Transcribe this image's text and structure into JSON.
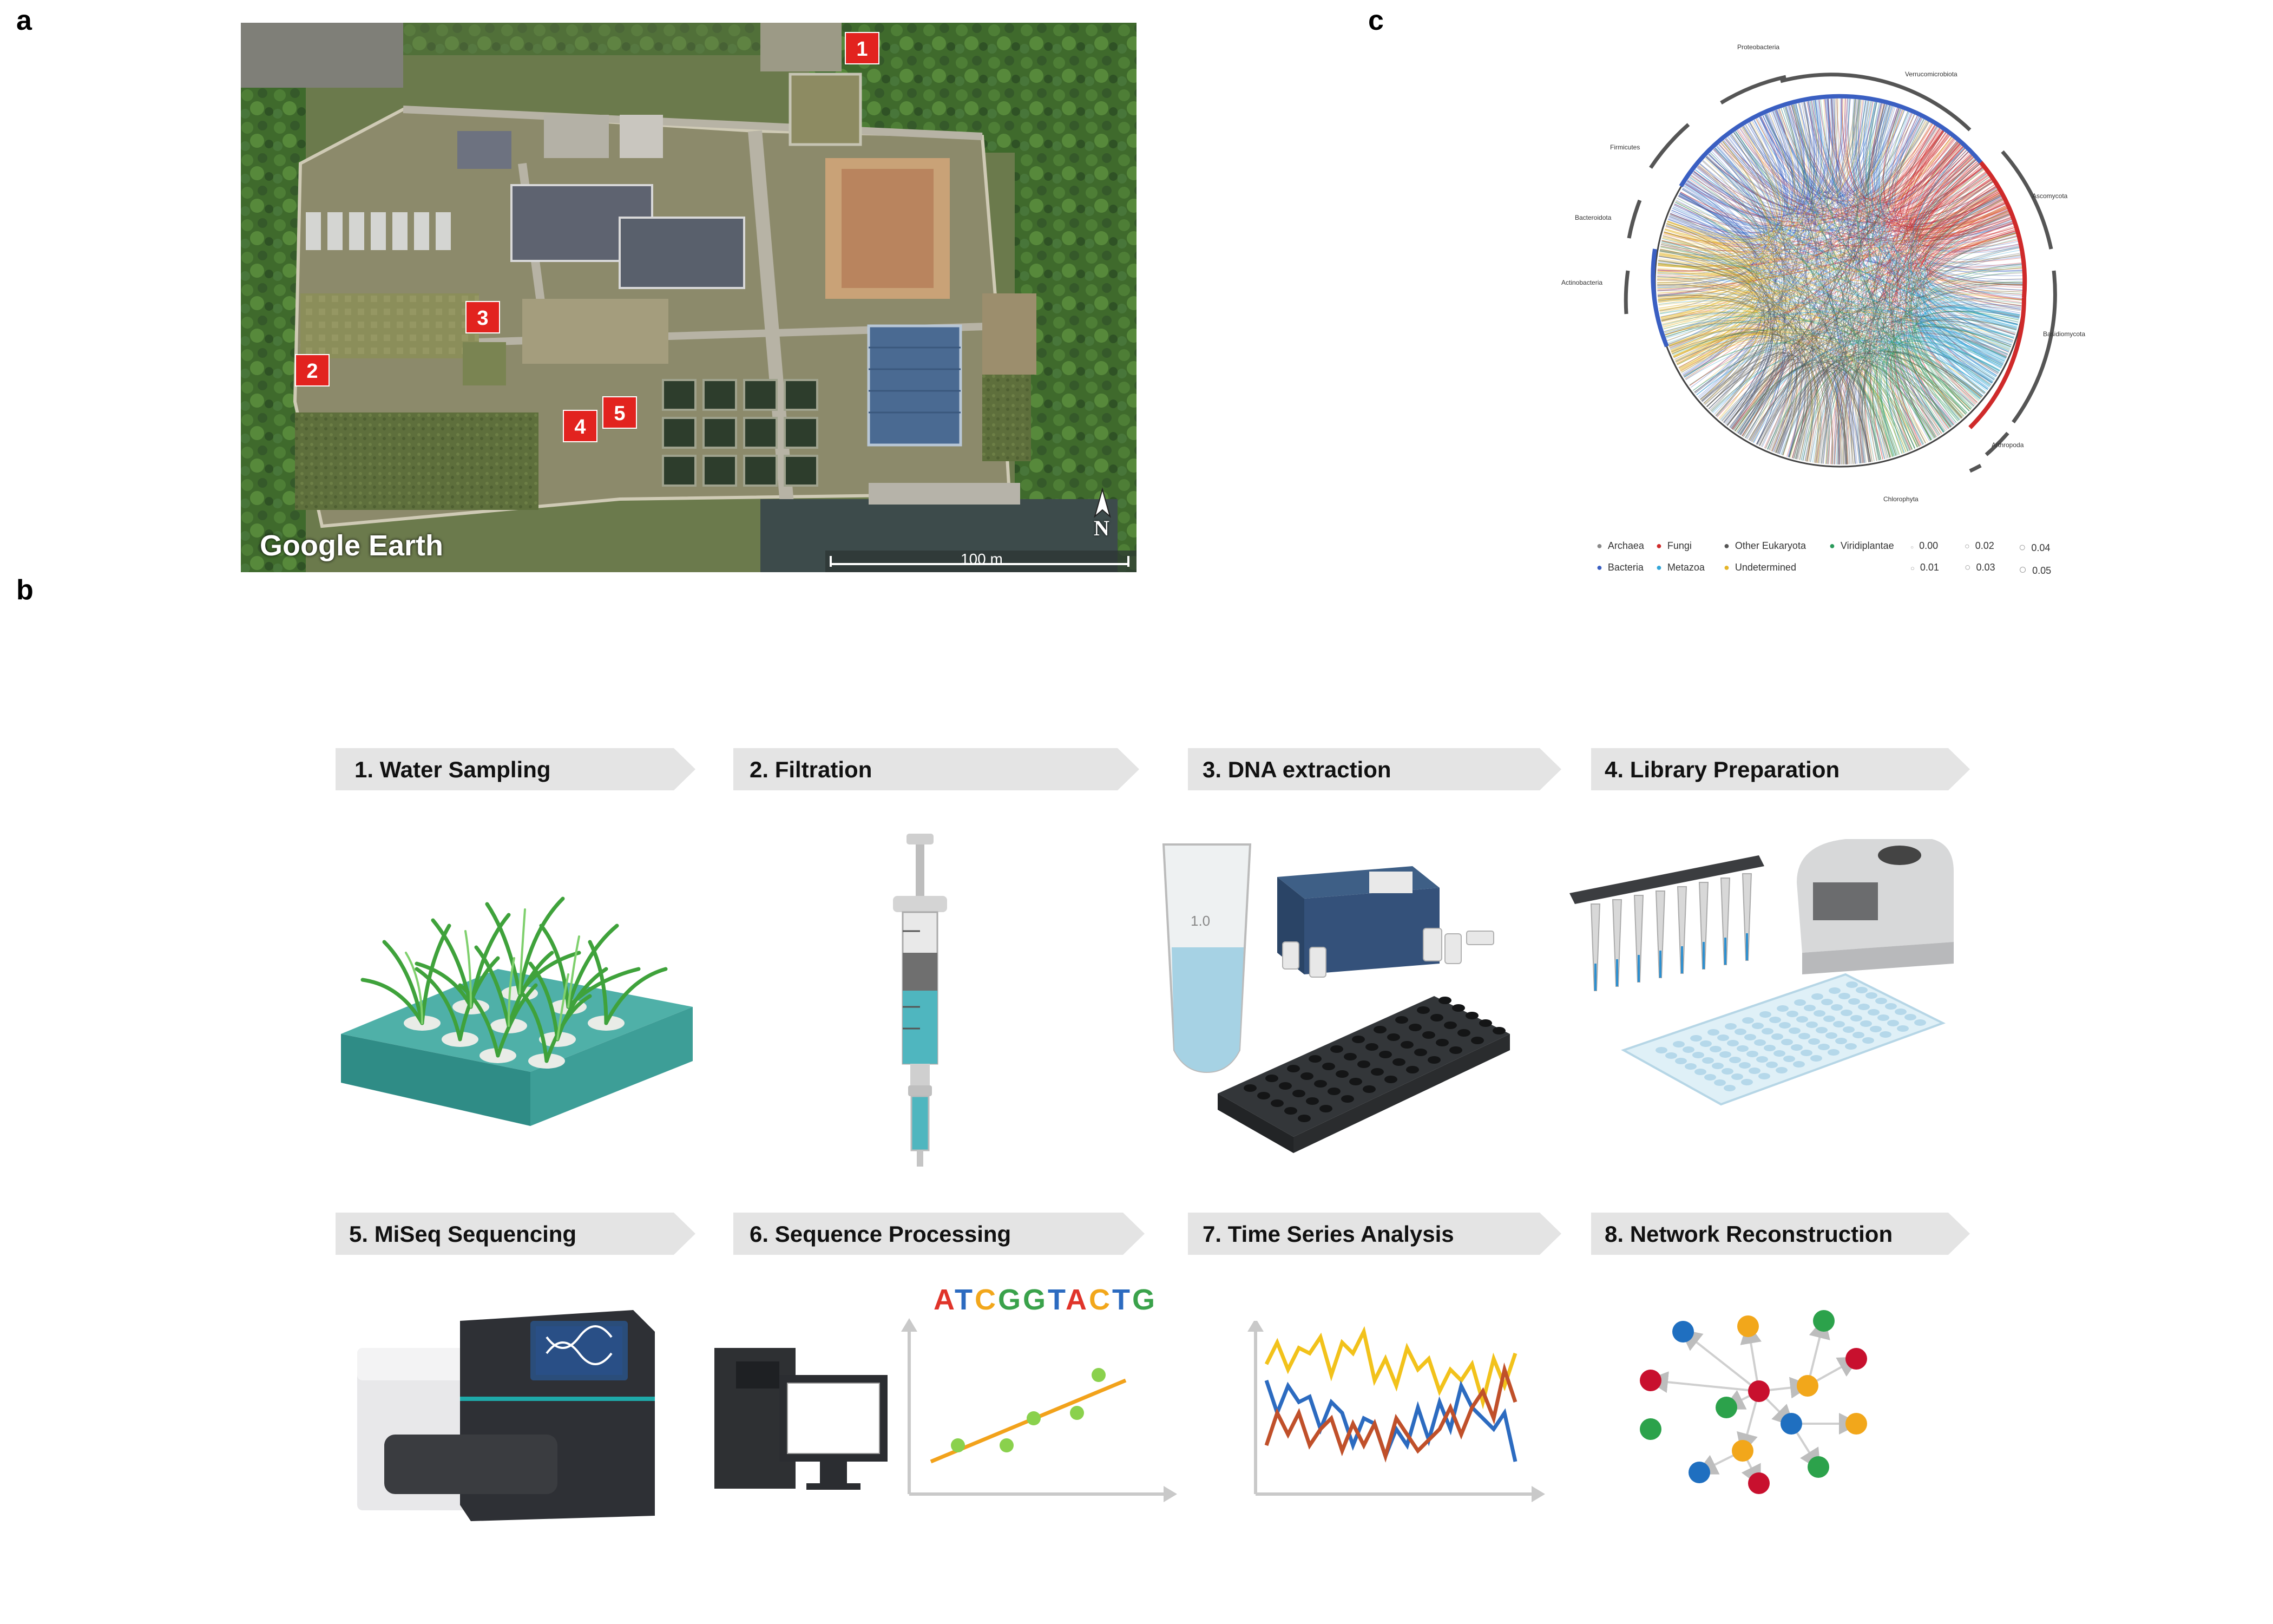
{
  "panel_letters": {
    "a": "a",
    "b": "b",
    "c": "c"
  },
  "panel_a": {
    "site_markers": [
      "1",
      "2",
      "3",
      "4",
      "5"
    ],
    "watermark": "Google Earth",
    "compass": "N",
    "scale_label": "100 m"
  },
  "panel_b": {
    "steps": [
      {
        "label": "1. Water Sampling"
      },
      {
        "label": "2. Filtration"
      },
      {
        "label": "3. DNA extraction"
      },
      {
        "label": "4. Library Preparation"
      },
      {
        "label": "5. MiSeq Sequencing"
      },
      {
        "label": "6. Sequence Processing"
      },
      {
        "label": "7. Time Series Analysis"
      },
      {
        "label": "8. Network Reconstruction"
      }
    ],
    "sequence_text": [
      "A",
      "T",
      "C",
      "G",
      "G",
      "T",
      "A",
      "C",
      "T",
      "G"
    ],
    "sequence_colors": [
      "#e0342a",
      "#2c6bc0",
      "#f2a71b",
      "#3aa24b",
      "#3aa24b",
      "#2c6bc0",
      "#e0342a",
      "#f2a71b",
      "#2c6bc0",
      "#3aa24b"
    ],
    "tube_label": "1.0"
  },
  "panel_c": {
    "arc_labels": {
      "proteobacteria": "Proteobacteria",
      "verrucomicrobiota": "Verrucomicrobiota",
      "firmicutes": "Firmicutes",
      "bacteroidota": "Bacteroidota",
      "actinobacteria": "Actinobacteria",
      "ascomycota": "Ascomycota",
      "basidiomycota": "Basidiomycota",
      "arthropoda": "Arthropoda",
      "chlorophyta": "Chlorophyta"
    },
    "legend_groups": [
      {
        "name": "Archaea",
        "color": "#8a8a8a"
      },
      {
        "name": "Fungi",
        "color": "#cf2a2a"
      },
      {
        "name": "Other Eukaryota",
        "color": "#555555"
      },
      {
        "name": "Viridiplantae",
        "color": "#2a9a5a"
      },
      {
        "name": "Bacteria",
        "color": "#3a5fc2"
      },
      {
        "name": "Metazoa",
        "color": "#33a6d8"
      },
      {
        "name": "Undetermined",
        "color": "#e5b52a"
      }
    ],
    "legend_sizes": [
      "0.00",
      "0.02",
      "0.04",
      "0.01",
      "0.03",
      "0.05"
    ]
  }
}
